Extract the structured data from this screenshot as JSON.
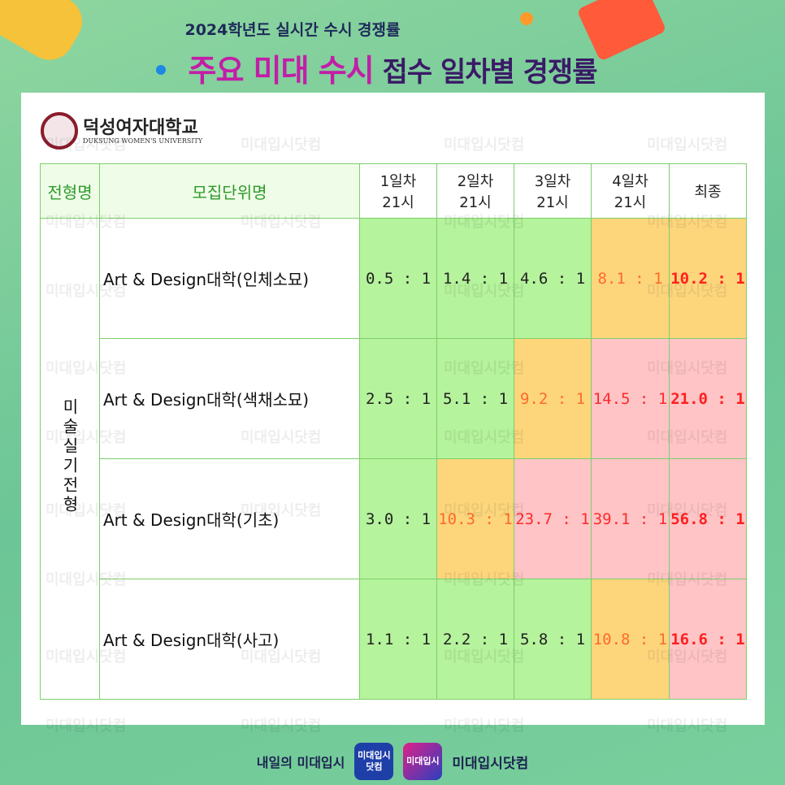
{
  "header": {
    "subtitle": "2024학년도 실시간 수시 경쟁률",
    "title_highlight": "주요 미대 수시",
    "title_rest": "접수 일차별 경쟁률"
  },
  "university": {
    "name": "덕성여자대학교",
    "english": "DUKSUNG WOMEN'S UNIVERSITY"
  },
  "table": {
    "headers": [
      [
        "전형명"
      ],
      [
        "모집단위명"
      ],
      [
        "1일차",
        "21시"
      ],
      [
        "2일차",
        "21시"
      ],
      [
        "3일차",
        "21시"
      ],
      [
        "4일차",
        "21시"
      ],
      [
        "최종"
      ]
    ],
    "group": "미술실기전형",
    "rows": [
      {
        "unit": "Art & Design대학(인체소묘)",
        "cells": [
          {
            "text": "0.5 : 1",
            "bg": "#b5f39c",
            "color": "#222222"
          },
          {
            "text": "1.4 : 1",
            "bg": "#b5f39c",
            "color": "#222222"
          },
          {
            "text": "4.6 : 1",
            "bg": "#b5f39c",
            "color": "#222222"
          },
          {
            "text": "8.1 : 1",
            "bg": "#fdd67c",
            "color": "#ff6a2a"
          },
          {
            "text": "10.2 : 1",
            "bg": "#fdd67c",
            "color": "#ff1f1f",
            "bold": true
          }
        ]
      },
      {
        "unit": "Art & Design대학(색채소묘)",
        "cells": [
          {
            "text": "2.5 : 1",
            "bg": "#b5f39c",
            "color": "#222222"
          },
          {
            "text": "5.1 : 1",
            "bg": "#b5f39c",
            "color": "#222222"
          },
          {
            "text": "9.2 : 1",
            "bg": "#fdd67c",
            "color": "#ff6a2a"
          },
          {
            "text": "14.5 : 1",
            "bg": "#ffc4c6",
            "color": "#ff2a2a"
          },
          {
            "text": "21.0 : 1",
            "bg": "#ffc4c6",
            "color": "#ff1f1f",
            "bold": true
          }
        ]
      },
      {
        "unit": "Art & Design대학(기초)",
        "cells": [
          {
            "text": "3.0 : 1",
            "bg": "#b5f39c",
            "color": "#222222"
          },
          {
            "text": "10.3 : 1",
            "bg": "#fdd67c",
            "color": "#ff6a2a"
          },
          {
            "text": "23.7 : 1",
            "bg": "#ffc4c6",
            "color": "#ff2a2a"
          },
          {
            "text": "39.1 : 1",
            "bg": "#ffc4c6",
            "color": "#ff2a2a"
          },
          {
            "text": "56.8 : 1",
            "bg": "#ffc4c6",
            "color": "#ff1f1f",
            "bold": true
          }
        ]
      },
      {
        "unit": "Art & Design대학(사고)",
        "cells": [
          {
            "text": "1.1 : 1",
            "bg": "#b5f39c",
            "color": "#222222"
          },
          {
            "text": "2.2 : 1",
            "bg": "#b5f39c",
            "color": "#222222"
          },
          {
            "text": "5.8 : 1",
            "bg": "#b5f39c",
            "color": "#222222"
          },
          {
            "text": "10.8 : 1",
            "bg": "#fdd67c",
            "color": "#ff6a2a"
          },
          {
            "text": "16.6 : 1",
            "bg": "#ffc4c6",
            "color": "#ff1f1f",
            "bold": true
          }
        ]
      }
    ]
  },
  "watermark": "미대입시닷컴",
  "footer": {
    "slogan": "내일의 미대입시",
    "logo_lines": [
      "미대입시",
      "닷컴"
    ],
    "brand": "미대입시닷컴"
  }
}
